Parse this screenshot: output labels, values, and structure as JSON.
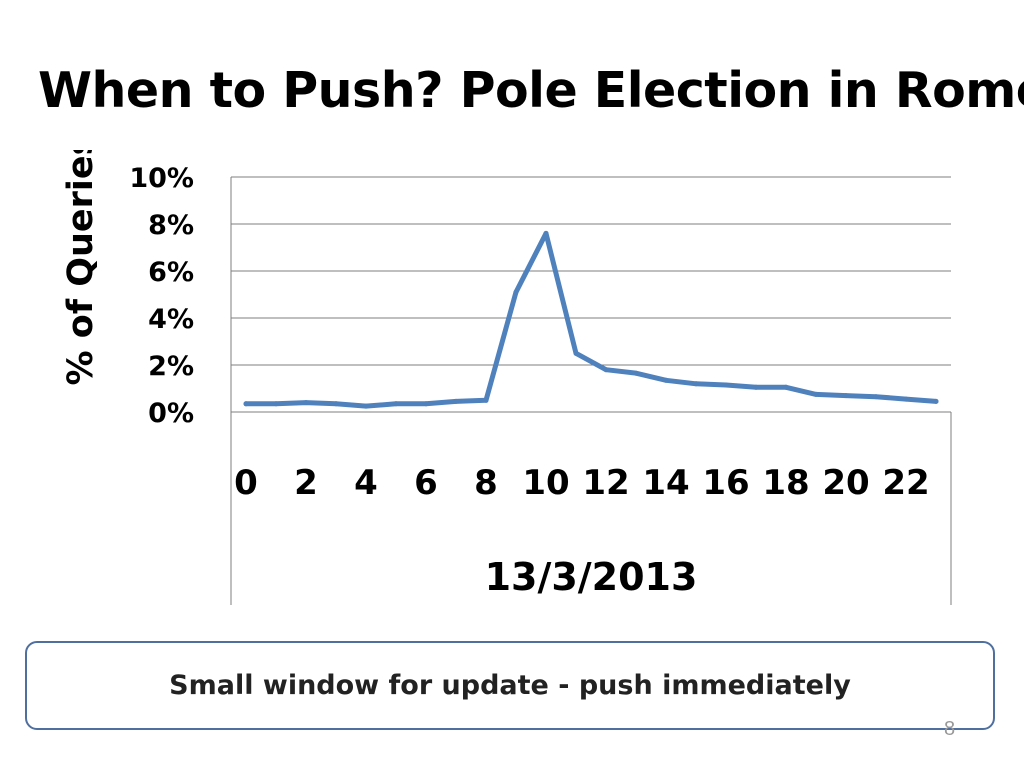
{
  "slide": {
    "title": "When to Push? Pole Election in Rome",
    "note": "Small window for update - push immediately",
    "page_number": "8"
  },
  "colors": {
    "line": "#4f81bd",
    "grid": "#7f7f7f",
    "box_border": "#4f6f9f"
  },
  "chart_data": {
    "type": "line",
    "title": "",
    "xlabel": "13/3/2013",
    "ylabel": "% of Queries",
    "x": [
      0,
      1,
      2,
      3,
      4,
      5,
      6,
      7,
      8,
      9,
      10,
      11,
      12,
      13,
      14,
      15,
      16,
      17,
      18,
      19,
      20,
      21,
      22,
      23
    ],
    "x_tick_labels": [
      "0",
      "2",
      "4",
      "6",
      "8",
      "10",
      "12",
      "14",
      "16",
      "18",
      "20",
      "22"
    ],
    "y_tick_labels": [
      "0%",
      "2%",
      "4%",
      "6%",
      "8%",
      "10%"
    ],
    "ylim": [
      0,
      10
    ],
    "grid": true,
    "series": [
      {
        "values": [
          0.35,
          0.35,
          0.4,
          0.35,
          0.25,
          0.35,
          0.35,
          0.45,
          0.5,
          5.1,
          7.6,
          2.5,
          1.8,
          1.65,
          1.35,
          1.2,
          1.15,
          1.05,
          1.05,
          0.75,
          0.7,
          0.65,
          0.55,
          0.45
        ]
      }
    ]
  }
}
